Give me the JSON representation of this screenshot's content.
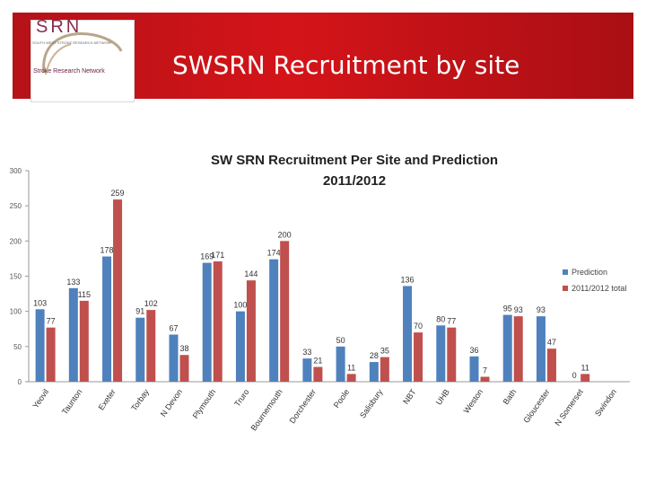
{
  "header": {
    "title": "SWSRN Recruitment by site",
    "logo": {
      "abbr": "SRN",
      "tagline": "SOUTH WEST STROKE RESEARCH NETWORK",
      "name": "Stroke Research Network"
    }
  },
  "colors": {
    "banner": "#c8161c",
    "prediction": "#4f81bd",
    "total": "#c0504d"
  },
  "chart_data": {
    "type": "bar",
    "title_line1": "SW SRN Recruitment Per Site and Prediction",
    "title_line2": "2011/2012",
    "categories": [
      "Yeovil",
      "Taunton",
      "Exeter",
      "Torbay",
      "N Devon",
      "Plymouth",
      "Truro",
      "Bournemouth",
      "Dorchester",
      "Poole",
      "Salisbury",
      "NBT",
      "UHB",
      "Weston",
      "Bath",
      "Gloucester",
      "N Somerset",
      "Swindon"
    ],
    "series": [
      {
        "name": "Prediction",
        "values": [
          103,
          133,
          178,
          91,
          67,
          169,
          100,
          174,
          33,
          50,
          28,
          136,
          80,
          36,
          95,
          93,
          0,
          null
        ]
      },
      {
        "name": "2011/2012 total",
        "values": [
          77,
          115,
          259,
          102,
          38,
          171,
          144,
          200,
          21,
          11,
          35,
          70,
          77,
          7,
          93,
          47,
          11,
          null
        ]
      }
    ],
    "ylim": [
      0,
      300
    ],
    "yticks": [
      0,
      50,
      100,
      150,
      200,
      250,
      300
    ],
    "legend": "right"
  }
}
